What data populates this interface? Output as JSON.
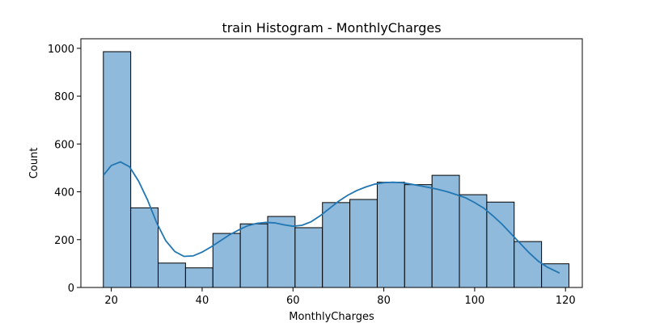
{
  "chart_data": {
    "type": "bar",
    "title": "train Histogram - MonthlyCharges",
    "xlabel": "MonthlyCharges",
    "ylabel": "Count",
    "xlim": [
      13.3,
      123.7
    ],
    "ylim": [
      0,
      1040
    ],
    "xticks": [
      20,
      40,
      60,
      80,
      100,
      120
    ],
    "yticks": [
      0,
      200,
      400,
      600,
      800,
      1000
    ],
    "bins": [
      {
        "x0": 18.25,
        "x1": 24.28,
        "count": 986
      },
      {
        "x0": 24.28,
        "x1": 30.31,
        "count": 333
      },
      {
        "x0": 30.31,
        "x1": 36.34,
        "count": 102
      },
      {
        "x0": 36.34,
        "x1": 42.37,
        "count": 82
      },
      {
        "x0": 42.37,
        "x1": 48.4,
        "count": 226
      },
      {
        "x0": 48.4,
        "x1": 54.43,
        "count": 266
      },
      {
        "x0": 54.43,
        "x1": 60.46,
        "count": 297
      },
      {
        "x0": 60.46,
        "x1": 66.49,
        "count": 250
      },
      {
        "x0": 66.49,
        "x1": 72.52,
        "count": 355
      },
      {
        "x0": 72.52,
        "x1": 78.55,
        "count": 368
      },
      {
        "x0": 78.55,
        "x1": 84.58,
        "count": 440
      },
      {
        "x0": 84.58,
        "x1": 90.61,
        "count": 430
      },
      {
        "x0": 90.61,
        "x1": 96.64,
        "count": 469
      },
      {
        "x0": 96.64,
        "x1": 102.67,
        "count": 388
      },
      {
        "x0": 102.67,
        "x1": 108.7,
        "count": 357
      },
      {
        "x0": 108.7,
        "x1": 114.73,
        "count": 192
      },
      {
        "x0": 114.73,
        "x1": 120.76,
        "count": 99
      }
    ],
    "kde": {
      "x": [
        18.3,
        20,
        22,
        24,
        26,
        28,
        30,
        32,
        34,
        36,
        38,
        40,
        42,
        44,
        46,
        48,
        50,
        52,
        54,
        56,
        58,
        60,
        62,
        64,
        66,
        68,
        70,
        72,
        74,
        76,
        78,
        80,
        82,
        84,
        86,
        88,
        90,
        92,
        94,
        96,
        98,
        100,
        102,
        104,
        106,
        108,
        110,
        112,
        114,
        116,
        118.7
      ],
      "y": [
        470,
        510,
        525,
        505,
        445,
        365,
        270,
        195,
        150,
        130,
        132,
        148,
        170,
        195,
        220,
        240,
        258,
        268,
        272,
        270,
        262,
        256,
        260,
        275,
        300,
        330,
        360,
        385,
        405,
        420,
        432,
        438,
        440,
        438,
        432,
        425,
        418,
        410,
        400,
        388,
        375,
        355,
        332,
        300,
        265,
        225,
        185,
        145,
        110,
        85,
        60
      ]
    },
    "colors": {
      "bar_fill": "#8fbadb",
      "bar_edge": "#000000",
      "kde_line": "#2176b4"
    },
    "grid": false,
    "legend": "none"
  }
}
